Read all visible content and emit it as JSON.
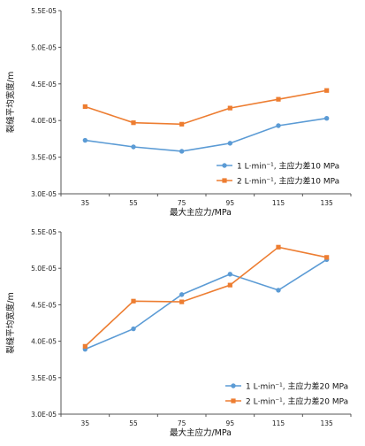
{
  "chart_data": [
    {
      "type": "line",
      "categories": [
        "35",
        "55",
        "75",
        "95",
        "115",
        "135"
      ],
      "xlabel": "最大主应力/MPa",
      "ylabel": "裂缝平均宽度/m",
      "ylim": [
        3e-05,
        5.5e-05
      ],
      "yticks": [
        "3.0E-05",
        "3.5E-05",
        "4.0E-05",
        "4.5E-05",
        "5.0E-05",
        "5.5E-05"
      ],
      "grid": false,
      "legend_position": "bottom-right",
      "series": [
        {
          "name": "1 L·min⁻¹, 主应力差10 MPa",
          "color": "#5b9bd5",
          "marker": "circle",
          "values": [
            3.73e-05,
            3.64e-05,
            3.58e-05,
            3.69e-05,
            3.93e-05,
            4.03e-05
          ]
        },
        {
          "name": "2 L·min⁻¹, 主应力差10 MPa",
          "color": "#ed7d31",
          "marker": "square",
          "values": [
            4.19e-05,
            3.97e-05,
            3.95e-05,
            4.17e-05,
            4.29e-05,
            4.41e-05
          ]
        }
      ]
    },
    {
      "type": "line",
      "categories": [
        "35",
        "55",
        "75",
        "95",
        "115",
        "135"
      ],
      "xlabel": "最大主应力/MPa",
      "ylabel": "裂缝平均宽度/m",
      "ylim": [
        3e-05,
        5.5e-05
      ],
      "yticks": [
        "3.0E-05",
        "3.5E-05",
        "4.0E-05",
        "4.5E-05",
        "5.0E-05",
        "5.5E-05"
      ],
      "grid": false,
      "legend_position": "bottom-right",
      "series": [
        {
          "name": "1 L·min⁻¹, 主应力差20 MPa",
          "color": "#5b9bd5",
          "marker": "circle",
          "values": [
            3.89e-05,
            4.17e-05,
            4.64e-05,
            4.92e-05,
            4.7e-05,
            5.12e-05
          ]
        },
        {
          "name": "2 L·min⁻¹, 主应力差20 MPa",
          "color": "#ed7d31",
          "marker": "square",
          "values": [
            3.93e-05,
            4.55e-05,
            4.54e-05,
            4.77e-05,
            5.29e-05,
            5.15e-05
          ]
        }
      ]
    }
  ]
}
